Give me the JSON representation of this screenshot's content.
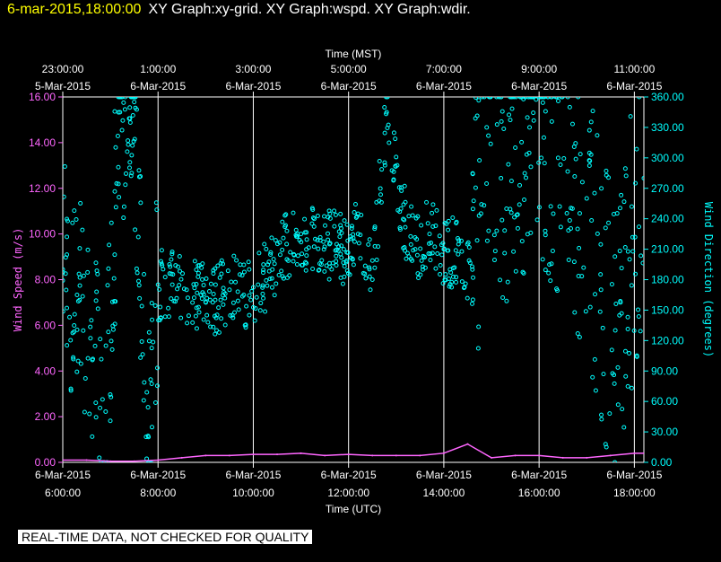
{
  "header": {
    "date": "6-mar-2015,18:00:00",
    "graphs": "XY Graph:xy-grid.  XY Graph:wspd.  XY Graph:wdir."
  },
  "disclaimer": "REAL-TIME DATA, NOT CHECKED FOR QUALITY",
  "colors": {
    "wind_speed": "#ff66ff",
    "wind_direction": "#00ffff",
    "grid": "#ffffff",
    "background": "#000000"
  },
  "chart_data": {
    "type": "scatter",
    "x_top_title": "Time (MST)",
    "x_bottom_title": "Time (UTC)",
    "y_left_title": "Wind Speed (m/s)",
    "y_right_title": "Wind Direction (degrees)",
    "x_range_hours_utc": [
      6,
      18.2
    ],
    "y_left_range": [
      0,
      16
    ],
    "y_right_range": [
      0,
      360
    ],
    "grid": true,
    "left_ticks": [
      "0.00",
      "2.00",
      "4.00",
      "6.00",
      "8.00",
      "10.00",
      "12.00",
      "14.00",
      "16.00"
    ],
    "right_ticks": [
      "0.00",
      "30.00",
      "60.00",
      "90.00",
      "120.00",
      "150.00",
      "180.00",
      "210.00",
      "240.00",
      "270.00",
      "300.00",
      "330.00",
      "360.00"
    ],
    "bottom_ticks": [
      {
        "date": "6-Mar-2015",
        "time": "6:00:00"
      },
      {
        "date": "6-Mar-2015",
        "time": "8:00:00"
      },
      {
        "date": "6-Mar-2015",
        "time": "10:00:00"
      },
      {
        "date": "6-Mar-2015",
        "time": "12:00:00"
      },
      {
        "date": "6-Mar-2015",
        "time": "14:00:00"
      },
      {
        "date": "6-Mar-2015",
        "time": "16:00:00"
      },
      {
        "date": "6-Mar-2015",
        "time": "18:00:00"
      }
    ],
    "top_ticks": [
      {
        "time": "23:00:00",
        "date": "5-Mar-2015"
      },
      {
        "time": "1:00:00",
        "date": "6-Mar-2015"
      },
      {
        "time": "3:00:00",
        "date": "6-Mar-2015"
      },
      {
        "time": "5:00:00",
        "date": "6-Mar-2015"
      },
      {
        "time": "7:00:00",
        "date": "6-Mar-2015"
      },
      {
        "time": "9:00:00",
        "date": "6-Mar-2015"
      },
      {
        "time": "11:00:00",
        "date": "6-Mar-2015"
      }
    ],
    "series": [
      {
        "name": "Wind Speed",
        "axis": "left",
        "x_hours_utc": [
          6.0,
          6.5,
          7.0,
          7.5,
          8.0,
          8.5,
          9.0,
          9.5,
          10.0,
          10.5,
          11.0,
          11.5,
          12.0,
          12.5,
          13.0,
          13.5,
          14.0,
          14.5,
          15.0,
          15.5,
          16.0,
          16.5,
          17.0,
          17.5,
          18.0,
          18.2
        ],
        "values": [
          0.1,
          0.1,
          0.05,
          0.05,
          0.1,
          0.2,
          0.3,
          0.3,
          0.35,
          0.35,
          0.4,
          0.3,
          0.35,
          0.3,
          0.3,
          0.3,
          0.4,
          0.8,
          0.2,
          0.3,
          0.3,
          0.2,
          0.2,
          0.3,
          0.4,
          0.4
        ]
      },
      {
        "name": "Wind Direction",
        "axis": "right",
        "x_hours_utc": [
          6.0,
          6.3,
          6.6,
          6.9,
          7.2,
          7.5,
          7.8,
          8.0,
          8.3,
          8.6,
          8.9,
          9.2,
          9.5,
          9.8,
          10.1,
          10.4,
          10.7,
          11.0,
          11.3,
          11.6,
          11.9,
          12.2,
          12.5,
          12.8,
          13.1,
          13.4,
          13.7,
          14.0,
          14.3,
          14.6,
          14.9,
          15.2,
          15.5,
          15.8,
          16.1,
          16.4,
          16.7,
          17.0,
          17.3,
          17.6,
          17.9,
          18.2
        ],
        "values": [
          190,
          165,
          140,
          50,
          345,
          355,
          25,
          175,
          175,
          170,
          165,
          160,
          170,
          165,
          175,
          190,
          215,
          225,
          220,
          215,
          210,
          225,
          180,
          345,
          250,
          210,
          225,
          210,
          205,
          190,
          330,
          280,
          310,
          330,
          320,
          300,
          250,
          260,
          170,
          130,
          200,
          280
        ]
      }
    ]
  }
}
